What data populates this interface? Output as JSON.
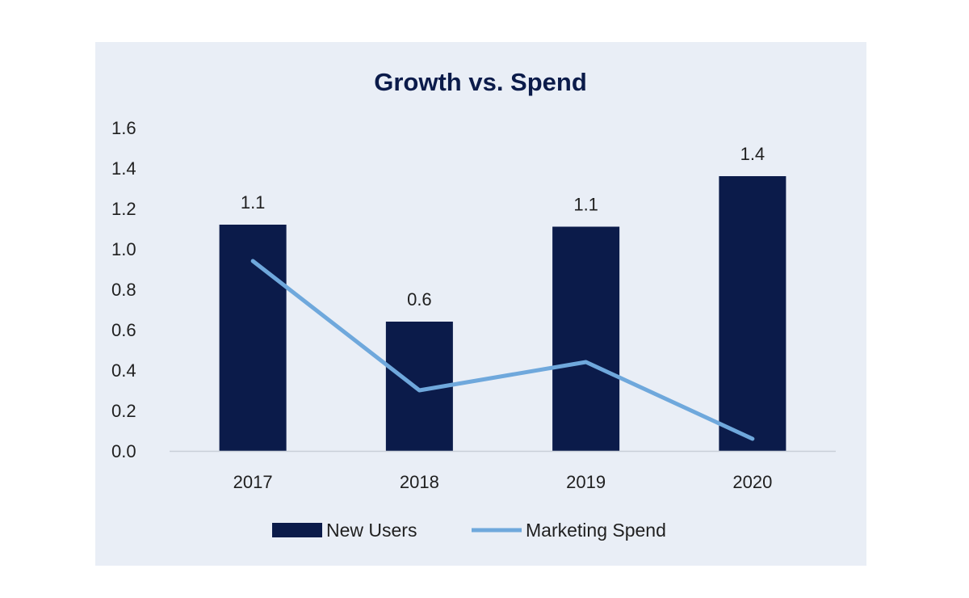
{
  "chart_data": {
    "type": "bar",
    "title": "Growth vs. Spend",
    "categories": [
      "2017",
      "2018",
      "2019",
      "2020"
    ],
    "y_ticks": [
      "0.0",
      "0.2",
      "0.4",
      "0.6",
      "0.8",
      "1.0",
      "1.2",
      "1.4",
      "1.6"
    ],
    "ylim": [
      0,
      1.6
    ],
    "series": [
      {
        "name": "New Users",
        "kind": "bar",
        "color": "#0b1b4a",
        "values": [
          1.12,
          0.64,
          1.11,
          1.36
        ],
        "data_labels": [
          "1.1",
          "0.6",
          "1.1",
          "1.4"
        ]
      },
      {
        "name": "Marketing Spend",
        "kind": "line",
        "color": "#6fa8dc",
        "values": [
          0.94,
          0.3,
          0.44,
          0.06
        ]
      }
    ],
    "grid": false,
    "legend_position": "bottom",
    "background_color": "#e9eef6"
  }
}
